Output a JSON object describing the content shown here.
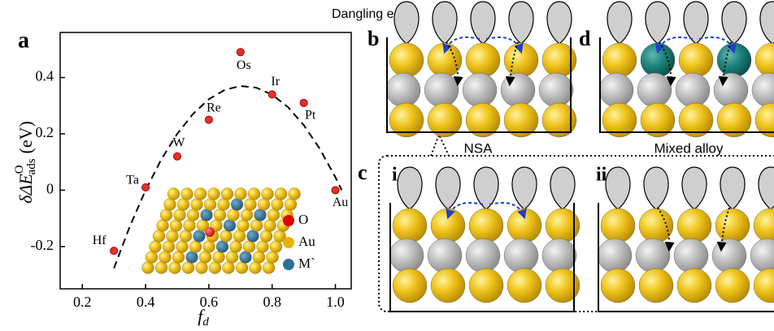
{
  "chart_data": {
    "type": "scatter",
    "x_label": {
      "main": "f",
      "sub": "d"
    },
    "y_label": {
      "main": "δΔE",
      "sub": "ads",
      "sup": "O",
      "unit": "(eV)"
    },
    "xlim": [
      0.13,
      1.05
    ],
    "ylim": [
      -0.35,
      0.56
    ],
    "xticks": [
      0.2,
      0.4,
      0.6,
      0.8,
      {
        "value": 1,
        "label": "1.0"
      }
    ],
    "yticks": [
      -0.2,
      0,
      0.2,
      0.4
    ],
    "points": {
      "color": "#e8302a",
      "labels": [
        "Hf",
        "Ta",
        "W",
        "Re",
        "Os",
        "Ir",
        "Pt",
        "Au"
      ],
      "x": [
        0.3,
        0.4,
        0.5,
        0.6,
        0.7,
        0.8,
        0.9,
        1.0
      ],
      "values": [
        -0.215,
        0.01,
        0.12,
        0.25,
        0.49,
        0.34,
        0.31,
        0.0
      ]
    },
    "fit_curve": {
      "color": "#000000",
      "x": [
        0.3,
        0.35,
        0.4,
        0.45,
        0.5,
        0.55,
        0.6,
        0.65,
        0.7,
        0.75,
        0.8,
        0.85,
        0.9,
        0.95,
        1.0,
        1.02
      ],
      "values": [
        -0.277,
        -0.129,
        0.0,
        0.11,
        0.2,
        0.271,
        0.323,
        0.356,
        0.37,
        0.364,
        0.339,
        0.295,
        0.231,
        0.148,
        0.046,
        0.0
      ]
    },
    "inset_legend": [
      {
        "label": "O",
        "color": "#e00000"
      },
      {
        "label": "Au",
        "color": "#e6b400"
      },
      {
        "label": "M`",
        "color": "#2b6f96"
      }
    ]
  },
  "panels": {
    "a": "a",
    "b": "b",
    "c": "c",
    "d": "d",
    "i": "i",
    "ii": "ii",
    "dangling": "Dangling e-",
    "nsa": "NSA",
    "mixed": "Mixed alloy"
  }
}
